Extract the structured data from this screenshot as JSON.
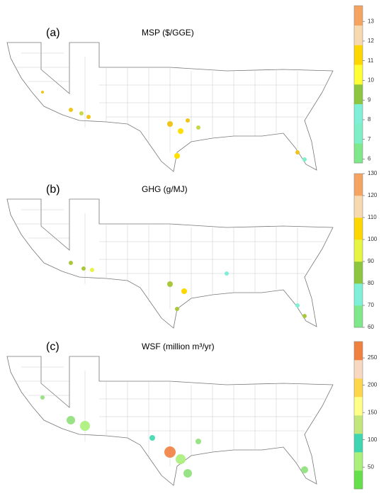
{
  "panels": [
    {
      "label": "(a)",
      "title": "MSP ($/GGE)",
      "colorbar": {
        "lim": [
          5.8,
          13.8
        ],
        "ticks": [
          6,
          7,
          8,
          9,
          10,
          11,
          12,
          13
        ],
        "colors": [
          "#7ee88a",
          "#7ef0c8",
          "#7ef0d8",
          "#8cc63f",
          "#ffff33",
          "#ffd700",
          "#f7d9b0",
          "#f4a460"
        ]
      }
    },
    {
      "label": "(b)",
      "title": "GHG (g/MJ)",
      "colorbar": {
        "lim": [
          60,
          130
        ],
        "ticks": [
          60,
          70,
          80,
          90,
          100,
          110,
          120,
          130
        ],
        "colors": [
          "#7ee88a",
          "#7ef0d8",
          "#8cc63f",
          "#e5f542",
          "#ffd700",
          "#f7d9b0",
          "#f4a460"
        ]
      }
    },
    {
      "label": "(c)",
      "title": "WSF (million m³/yr)",
      "colorbar": {
        "lim": [
          10,
          280
        ],
        "ticks": [
          50,
          100,
          150,
          200,
          250
        ],
        "colors": [
          "#66e04a",
          "#aaf07a",
          "#3ed6b0",
          "#c3e67a",
          "#ffff88",
          "#ffd54a",
          "#f8d8c0",
          "#f08040"
        ]
      }
    }
  ]
}
